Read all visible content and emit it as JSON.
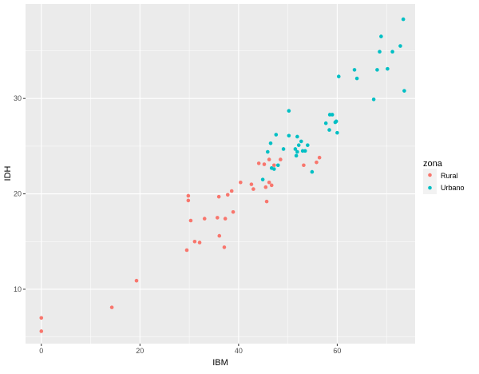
{
  "chart_data": {
    "type": "scatter",
    "xlabel": "IBM",
    "ylabel": "IDH",
    "xlim": [
      -3.2,
      75.8
    ],
    "ylim": [
      4.3,
      39.9
    ],
    "x_major_ticks": [
      0,
      20,
      40,
      60
    ],
    "x_minor_ticks": [
      10,
      30,
      50,
      70
    ],
    "y_major_ticks": [
      10,
      20,
      30
    ],
    "y_minor_ticks": [
      5,
      15,
      25,
      35
    ],
    "x_tick_labels": [
      "0",
      "20",
      "40",
      "60"
    ],
    "y_tick_labels": [
      "10",
      "20",
      "30"
    ],
    "grid": true,
    "background": "#EBEBEB",
    "legend": {
      "title": "zona",
      "placement": "right"
    },
    "series": [
      {
        "name": "Rural",
        "color": "#F8766D",
        "points": [
          [
            0,
            7.0
          ],
          [
            0,
            5.6
          ],
          [
            14.3,
            8.1
          ],
          [
            19.3,
            10.9
          ],
          [
            29.8,
            19.8
          ],
          [
            29.8,
            19.3
          ],
          [
            30.3,
            17.2
          ],
          [
            29.5,
            14.1
          ],
          [
            31.1,
            15.0
          ],
          [
            32.1,
            14.9
          ],
          [
            33.1,
            17.4
          ],
          [
            35.7,
            17.5
          ],
          [
            36.0,
            19.7
          ],
          [
            36.1,
            15.6
          ],
          [
            37.3,
            17.4
          ],
          [
            37.1,
            14.4
          ],
          [
            37.8,
            19.9
          ],
          [
            38.6,
            20.3
          ],
          [
            38.9,
            18.1
          ],
          [
            40.4,
            21.2
          ],
          [
            42.6,
            21.0
          ],
          [
            43.0,
            20.5
          ],
          [
            44.1,
            23.2
          ],
          [
            45.2,
            23.1
          ],
          [
            45.5,
            20.7
          ],
          [
            45.7,
            19.2
          ],
          [
            46.2,
            21.2
          ],
          [
            46.7,
            20.9
          ],
          [
            46.2,
            23.6
          ],
          [
            47.2,
            23.0
          ],
          [
            48.5,
            23.6
          ],
          [
            53.2,
            23.0
          ],
          [
            55.8,
            23.3
          ],
          [
            56.4,
            23.8
          ]
        ]
      },
      {
        "name": "Urbano",
        "color": "#00BFC4",
        "points": [
          [
            50.2,
            28.7
          ],
          [
            47.6,
            26.2
          ],
          [
            46.5,
            25.3
          ],
          [
            45.9,
            24.4
          ],
          [
            49.1,
            24.7
          ],
          [
            50.2,
            26.1
          ],
          [
            51.9,
            26.0
          ],
          [
            52.7,
            25.5
          ],
          [
            52.2,
            25.1
          ],
          [
            54.0,
            25.1
          ],
          [
            51.5,
            24.7
          ],
          [
            51.9,
            24.4
          ],
          [
            53.0,
            24.5
          ],
          [
            53.5,
            24.5
          ],
          [
            51.7,
            24.0
          ],
          [
            46.7,
            22.7
          ],
          [
            47.2,
            22.6
          ],
          [
            48.0,
            23.0
          ],
          [
            44.9,
            21.5
          ],
          [
            54.9,
            22.3
          ],
          [
            73.4,
            38.3
          ],
          [
            68.9,
            36.5
          ],
          [
            72.8,
            35.5
          ],
          [
            68.6,
            34.9
          ],
          [
            71.2,
            34.9
          ],
          [
            63.5,
            33.0
          ],
          [
            68.1,
            33.0
          ],
          [
            70.2,
            33.1
          ],
          [
            60.3,
            32.3
          ],
          [
            64.0,
            32.1
          ],
          [
            73.6,
            30.8
          ],
          [
            67.4,
            29.9
          ],
          [
            58.5,
            28.3
          ],
          [
            59.0,
            28.3
          ],
          [
            57.7,
            27.4
          ],
          [
            59.6,
            27.5
          ],
          [
            59.8,
            27.6
          ],
          [
            58.4,
            26.7
          ],
          [
            60.0,
            26.4
          ]
        ]
      }
    ]
  }
}
